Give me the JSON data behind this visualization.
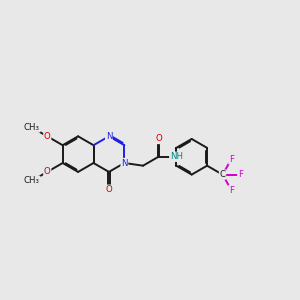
{
  "background_color": "#e8e8e8",
  "bond_color": "#1a1a1a",
  "N_color": "#2020dd",
  "O_color": "#cc0000",
  "F_color": "#cc00cc",
  "NH_color": "#008888",
  "lw": 1.4,
  "dbo": 0.018,
  "bl": 0.52,
  "xlim": [
    0.2,
    8.8
  ],
  "ylim": [
    3.2,
    7.8
  ],
  "figsize": [
    3.0,
    3.0
  ],
  "dpi": 100
}
